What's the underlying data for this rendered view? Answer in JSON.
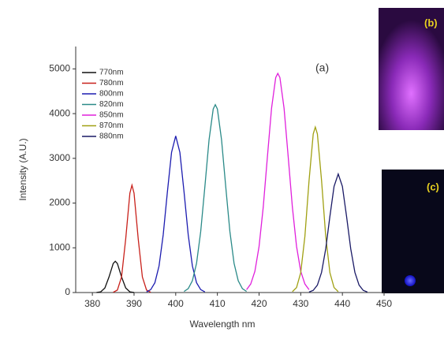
{
  "chart_data": {
    "type": "line",
    "xlabel": "Wavelength nm",
    "ylabel": "Intensity (A.U.)",
    "annotations": [
      "(a)",
      "(b)",
      "(c)"
    ],
    "xlim": [
      376,
      450
    ],
    "xticks": [
      380,
      390,
      400,
      410,
      420,
      430,
      440,
      450
    ],
    "ylim": [
      0,
      5500
    ],
    "yticks": [
      0,
      1000,
      2000,
      3000,
      4000,
      5000
    ],
    "legend": "upper left",
    "series": [
      {
        "name": "770nm",
        "color": "#111111",
        "x": [
          381,
          382,
          383,
          384,
          385,
          385.5,
          386,
          387,
          388,
          389,
          390
        ],
        "values": [
          1,
          16,
          102,
          350,
          648,
          700,
          648,
          350,
          102,
          16,
          1
        ]
      },
      {
        "name": "780nm",
        "color": "#c8201a",
        "x": [
          385,
          386,
          387,
          388,
          389,
          389.5,
          390,
          391,
          392,
          393,
          394
        ],
        "values": [
          5,
          55,
          348,
          1200,
          2222,
          2400,
          2222,
          1200,
          348,
          55,
          5
        ]
      },
      {
        "name": "800nm",
        "color": "#1c1cb0",
        "x": [
          393,
          394,
          395,
          396,
          397,
          398,
          399,
          400,
          401,
          402,
          403,
          404,
          405,
          406,
          407
        ],
        "values": [
          15,
          65,
          219,
          595,
          1292,
          2247,
          3133,
          3500,
          3133,
          2247,
          1292,
          595,
          219,
          65,
          15
        ]
      },
      {
        "name": "820nm",
        "color": "#2a8a88",
        "x": [
          402,
          403,
          404,
          405,
          406,
          407,
          408,
          409,
          409.5,
          410,
          411,
          412,
          413,
          414,
          415,
          416,
          417
        ],
        "values": [
          24,
          87,
          263,
          655,
          1365,
          2369,
          3415,
          4103,
          4200,
          4103,
          3415,
          2369,
          1365,
          655,
          263,
          87,
          24
        ]
      },
      {
        "name": "850nm",
        "color": "#e020dc",
        "x": [
          417,
          418,
          419,
          420,
          421,
          422,
          423,
          424,
          424.5,
          425,
          426,
          427,
          428,
          429,
          430,
          431,
          432
        ],
        "values": [
          64,
          191,
          475,
          1029,
          1906,
          3028,
          4121,
          4807,
          4900,
          4807,
          4121,
          3028,
          1906,
          1029,
          475,
          191,
          64
        ]
      },
      {
        "name": "870nm",
        "color": "#a0a012",
        "x": [
          428,
          429,
          430,
          431,
          432,
          433,
          433.5,
          434,
          435,
          436,
          437,
          438,
          439
        ],
        "values": [
          20,
          111,
          444,
          1254,
          2505,
          3545,
          3700,
          3545,
          2505,
          1254,
          444,
          111,
          20
        ]
      },
      {
        "name": "880nm",
        "color": "#1a1a66",
        "x": [
          432,
          433,
          434,
          435,
          436,
          437,
          438,
          439,
          440,
          441,
          442,
          443,
          444,
          445,
          446
        ],
        "values": [
          11,
          49,
          166,
          451,
          978,
          1701,
          2372,
          2650,
          2372,
          1701,
          978,
          451,
          166,
          49,
          11
        ]
      }
    ]
  }
}
